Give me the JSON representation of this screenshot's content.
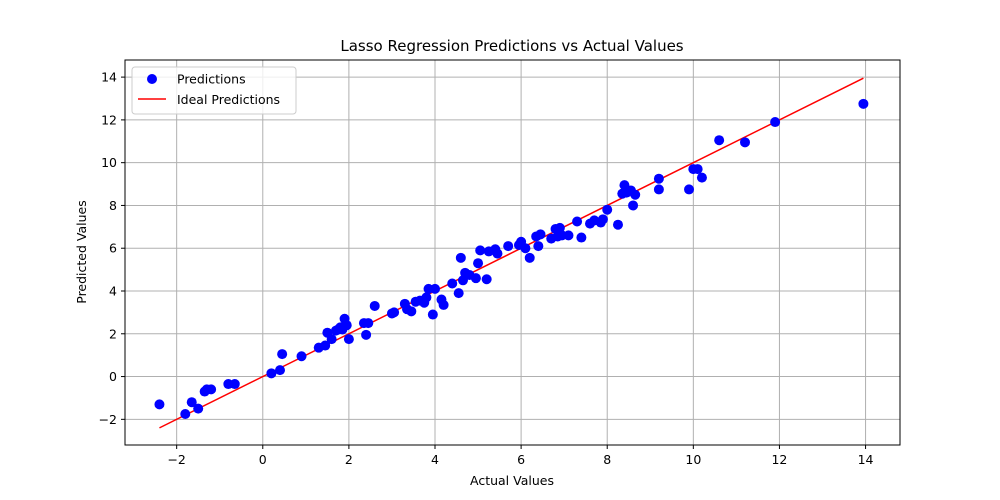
{
  "chart_data": {
    "type": "scatter",
    "title": "Lasso Regression Predictions vs Actual Values",
    "xlabel": "Actual Values",
    "ylabel": "Predicted Values",
    "xlim": [
      -3.2,
      14.8
    ],
    "ylim": [
      -3.2,
      14.8
    ],
    "xticks": [
      -2,
      0,
      2,
      4,
      6,
      8,
      10,
      12,
      14
    ],
    "yticks": [
      -2,
      0,
      2,
      4,
      6,
      8,
      10,
      12,
      14
    ],
    "xtick_labels": [
      "−2",
      "0",
      "2",
      "4",
      "6",
      "8",
      "10",
      "12",
      "14"
    ],
    "ytick_labels": [
      "−2",
      "0",
      "2",
      "4",
      "6",
      "8",
      "10",
      "12",
      "14"
    ],
    "grid": true,
    "legend_position": "top-left",
    "series": [
      {
        "name": "Predictions",
        "kind": "scatter",
        "color": "#0000ff",
        "points": [
          [
            -2.4,
            -1.3
          ],
          [
            -1.8,
            -1.75
          ],
          [
            -1.65,
            -1.2
          ],
          [
            -1.5,
            -1.5
          ],
          [
            -1.35,
            -0.7
          ],
          [
            -1.3,
            -0.6
          ],
          [
            -1.2,
            -0.6
          ],
          [
            -0.8,
            -0.35
          ],
          [
            -0.65,
            -0.35
          ],
          [
            0.2,
            0.15
          ],
          [
            0.4,
            0.3
          ],
          [
            0.45,
            1.05
          ],
          [
            0.9,
            0.95
          ],
          [
            1.3,
            1.35
          ],
          [
            1.45,
            1.45
          ],
          [
            1.5,
            2.05
          ],
          [
            1.6,
            1.75
          ],
          [
            1.7,
            2.15
          ],
          [
            1.75,
            2.2
          ],
          [
            1.8,
            2.3
          ],
          [
            1.85,
            2.2
          ],
          [
            1.9,
            2.7
          ],
          [
            1.95,
            2.4
          ],
          [
            2.0,
            1.75
          ],
          [
            2.35,
            2.5
          ],
          [
            2.4,
            1.95
          ],
          [
            2.45,
            2.5
          ],
          [
            2.6,
            3.3
          ],
          [
            3.0,
            2.95
          ],
          [
            3.05,
            3.0
          ],
          [
            3.3,
            3.4
          ],
          [
            3.35,
            3.15
          ],
          [
            3.45,
            3.05
          ],
          [
            3.55,
            3.5
          ],
          [
            3.65,
            3.55
          ],
          [
            3.75,
            3.45
          ],
          [
            3.8,
            3.7
          ],
          [
            3.85,
            4.1
          ],
          [
            3.95,
            2.9
          ],
          [
            4.0,
            4.1
          ],
          [
            4.15,
            3.6
          ],
          [
            4.2,
            3.35
          ],
          [
            4.4,
            4.35
          ],
          [
            4.55,
            3.9
          ],
          [
            4.6,
            5.55
          ],
          [
            4.65,
            4.5
          ],
          [
            4.7,
            4.85
          ],
          [
            4.8,
            4.75
          ],
          [
            4.95,
            4.6
          ],
          [
            5.0,
            5.3
          ],
          [
            5.05,
            5.9
          ],
          [
            5.2,
            4.55
          ],
          [
            5.25,
            5.85
          ],
          [
            5.4,
            5.95
          ],
          [
            5.45,
            5.75
          ],
          [
            5.7,
            6.1
          ],
          [
            5.95,
            6.15
          ],
          [
            6.0,
            6.3
          ],
          [
            6.1,
            6.0
          ],
          [
            6.2,
            5.55
          ],
          [
            6.35,
            6.55
          ],
          [
            6.4,
            6.1
          ],
          [
            6.45,
            6.65
          ],
          [
            6.7,
            6.45
          ],
          [
            6.8,
            6.9
          ],
          [
            6.85,
            6.55
          ],
          [
            6.9,
            6.95
          ],
          [
            6.95,
            6.6
          ],
          [
            7.1,
            6.6
          ],
          [
            7.3,
            7.25
          ],
          [
            7.4,
            6.5
          ],
          [
            7.6,
            7.15
          ],
          [
            7.7,
            7.3
          ],
          [
            7.85,
            7.2
          ],
          [
            7.9,
            7.35
          ],
          [
            8.0,
            7.8
          ],
          [
            8.25,
            7.1
          ],
          [
            8.35,
            8.55
          ],
          [
            8.4,
            8.95
          ],
          [
            8.45,
            8.6
          ],
          [
            8.55,
            8.7
          ],
          [
            8.6,
            8.0
          ],
          [
            8.65,
            8.5
          ],
          [
            9.2,
            9.25
          ],
          [
            9.2,
            8.75
          ],
          [
            9.9,
            8.75
          ],
          [
            10.0,
            9.7
          ],
          [
            10.1,
            9.7
          ],
          [
            10.2,
            9.3
          ],
          [
            10.6,
            11.05
          ],
          [
            11.2,
            10.95
          ],
          [
            11.9,
            11.9
          ],
          [
            13.95,
            12.75
          ]
        ]
      },
      {
        "name": "Ideal Predictions",
        "kind": "line",
        "color": "#ff0000",
        "points": [
          [
            -2.4,
            -2.4
          ],
          [
            13.95,
            13.95
          ]
        ]
      }
    ]
  }
}
